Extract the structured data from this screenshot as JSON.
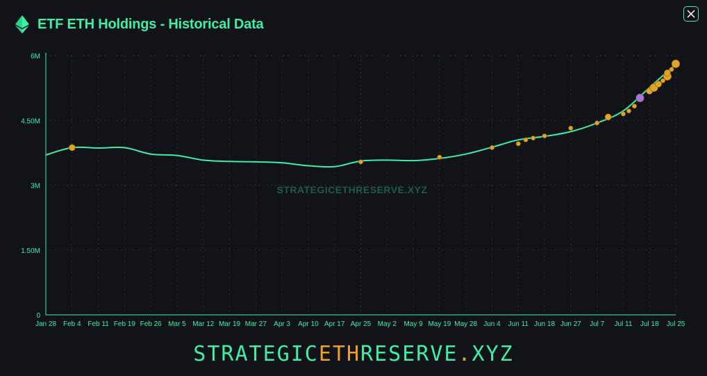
{
  "header": {
    "title": "ETF ETH Holdings - Historical Data",
    "icon": "ethereum-icon"
  },
  "close_button": {
    "icon": "close-icon"
  },
  "watermark": "STRATEGICETHRESERVE.XYZ",
  "footer": {
    "brand_part1": "STRATEGIC",
    "brand_accent": "ETH",
    "brand_part2": "RESERVE",
    "brand_dot": ".",
    "brand_tld": "XYZ"
  },
  "colors": {
    "background": "#121318",
    "accent_green": "#3df0a6",
    "marker_orange": "#e0a428",
    "marker_purple": "#a874e0",
    "grid": "#2a2f38"
  },
  "chart_data": {
    "type": "line",
    "title": "ETF ETH Holdings - Historical Data",
    "xlabel": "",
    "ylabel": "",
    "x_tick_labels": [
      "Jan 28",
      "Feb 4",
      "Feb 11",
      "Feb 19",
      "Feb 26",
      "Mar 5",
      "Mar 12",
      "Mar 19",
      "Mar 27",
      "Apr 3",
      "Apr 10",
      "Apr 17",
      "Apr 25",
      "May 2",
      "May 9",
      "May 19",
      "May 28",
      "Jun 4",
      "Jun 11",
      "Jun 18",
      "Jun 27",
      "Jul 7",
      "Jul 11",
      "Jul 18",
      "Jul 25"
    ],
    "y_tick_labels": [
      "0",
      "1.50M",
      "3M",
      "4.50M",
      "6M"
    ],
    "y_tick_values": [
      0,
      1500000,
      3000000,
      4500000,
      6000000
    ],
    "ylim": [
      0,
      6000000
    ],
    "grid": true,
    "series": [
      {
        "x": [
          "Jan 28",
          "Feb 4",
          "Feb 11",
          "Feb 19",
          "Feb 26",
          "Mar 5",
          "Mar 12",
          "Mar 19",
          "Mar 27",
          "Apr 3",
          "Apr 10",
          "Apr 17",
          "Apr 25",
          "May 2",
          "May 9",
          "May 19",
          "May 28",
          "Jun 4",
          "Jun 11",
          "Jun 18",
          "Jun 27",
          "Jul 7",
          "Jul 11",
          "Jul 18",
          "Jul 25"
        ],
        "values": [
          3700000,
          3870000,
          3860000,
          3870000,
          3720000,
          3690000,
          3580000,
          3550000,
          3540000,
          3520000,
          3450000,
          3430000,
          3560000,
          3580000,
          3570000,
          3620000,
          3720000,
          3880000,
          4050000,
          4130000,
          4240000,
          4440000,
          4720000,
          5260000,
          5800000
        ]
      }
    ],
    "markers": [
      {
        "date": "Feb 4",
        "value": 3870000,
        "color": "orange",
        "size": "medium"
      },
      {
        "date": "Apr 25",
        "value": 3540000,
        "color": "orange",
        "size": "small"
      },
      {
        "date": "May 19",
        "value": 3650000,
        "color": "orange",
        "size": "small"
      },
      {
        "date": "Jun 4",
        "value": 3870000,
        "color": "orange",
        "size": "small"
      },
      {
        "date": "Jun 11",
        "value": 3960000,
        "color": "orange",
        "size": "small"
      },
      {
        "date": "Jun 11",
        "value": 4050000,
        "color": "orange",
        "size": "small"
      },
      {
        "date": "Jun 11",
        "value": 4090000,
        "color": "orange",
        "size": "small"
      },
      {
        "date": "Jun 18",
        "value": 4140000,
        "color": "orange",
        "size": "small"
      },
      {
        "date": "Jun 27",
        "value": 4320000,
        "color": "orange",
        "size": "small"
      },
      {
        "date": "Jul 7",
        "value": 4440000,
        "color": "orange",
        "size": "small"
      },
      {
        "date": "Jul 7",
        "value": 4580000,
        "color": "orange",
        "size": "medium"
      },
      {
        "date": "Jul 11",
        "value": 4650000,
        "color": "orange",
        "size": "small"
      },
      {
        "date": "Jul 11",
        "value": 4720000,
        "color": "orange",
        "size": "small"
      },
      {
        "date": "Jul 11",
        "value": 4830000,
        "color": "orange",
        "size": "small"
      },
      {
        "date": "Jul 11",
        "value": 5020000,
        "color": "purple",
        "size": "large"
      },
      {
        "date": "Jul 18",
        "value": 5180000,
        "color": "orange",
        "size": "medium"
      },
      {
        "date": "Jul 18",
        "value": 5260000,
        "color": "orange",
        "size": "large"
      },
      {
        "date": "Jul 18",
        "value": 5340000,
        "color": "orange",
        "size": "medium"
      },
      {
        "date": "Jul 18",
        "value": 5420000,
        "color": "orange",
        "size": "small"
      },
      {
        "date": "Jul 18",
        "value": 5520000,
        "color": "orange",
        "size": "large"
      },
      {
        "date": "Jul 25",
        "value": 5600000,
        "color": "orange",
        "size": "medium"
      },
      {
        "date": "Jul 25",
        "value": 5680000,
        "color": "orange",
        "size": "small"
      },
      {
        "date": "Jul 25",
        "value": 5810000,
        "color": "orange",
        "size": "large"
      }
    ]
  }
}
